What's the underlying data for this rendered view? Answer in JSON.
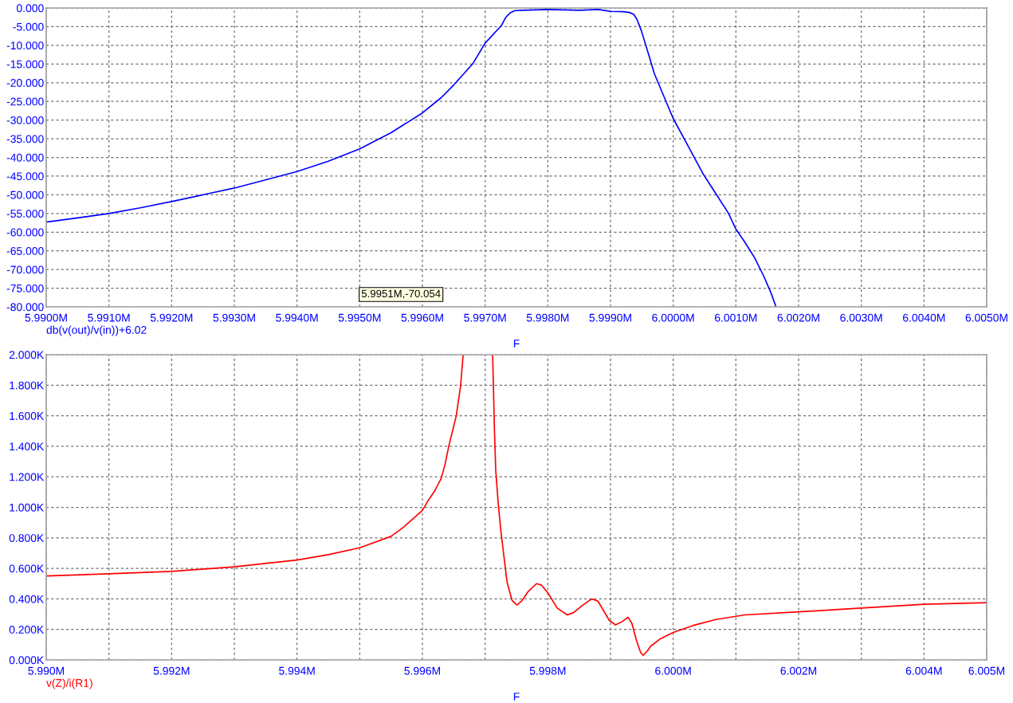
{
  "chart_data": [
    {
      "type": "line",
      "xlabel": "F",
      "x": [
        5.99,
        5.9905,
        5.991,
        5.9915,
        5.992,
        5.993,
        5.994,
        5.9945,
        5.995,
        5.9955,
        5.996,
        5.9963,
        5.9965,
        5.9968,
        5.997,
        5.99726,
        5.99733,
        5.9974,
        5.99748,
        5.9976,
        5.998,
        5.9985,
        5.9988,
        5.999,
        5.9992,
        5.9993,
        5.99937,
        5.99942,
        5.99949,
        5.9996,
        5.9997,
        5.99986,
        6.0,
        6.00022,
        6.00047,
        6.00068,
        6.00088,
        6.001,
        6.00114,
        6.0013,
        6.00145,
        6.00156,
        6.00164
      ],
      "series": [
        {
          "name": "db(v(out)/v(in))+6.02",
          "color": "#0000ff",
          "values": [
            -57.3,
            -56.2,
            -55.0,
            -53.5,
            -51.8,
            -48.2,
            -43.8,
            -41.0,
            -37.7,
            -33.4,
            -28.1,
            -24.0,
            -20.6,
            -15.0,
            -9.4,
            -4.7,
            -2.5,
            -1.3,
            -0.7,
            -0.6,
            -0.4,
            -0.6,
            -0.4,
            -0.9,
            -1.0,
            -1.2,
            -1.7,
            -3.0,
            -6.0,
            -12.0,
            -17.6,
            -24.0,
            -29.6,
            -36.4,
            -44.2,
            -49.7,
            -54.9,
            -59.2,
            -62.6,
            -66.9,
            -72.0,
            -76.3,
            -80.0
          ]
        }
      ],
      "xlim": [
        5.99,
        6.005
      ],
      "ylim": [
        -80,
        0
      ],
      "xticks": [
        {
          "value": 5.99,
          "label": "5.9900M"
        },
        {
          "value": 5.991,
          "label": "5.9910M"
        },
        {
          "value": 5.992,
          "label": "5.9920M"
        },
        {
          "value": 5.993,
          "label": "5.9930M"
        },
        {
          "value": 5.994,
          "label": "5.9940M"
        },
        {
          "value": 5.995,
          "label": "5.9950M"
        },
        {
          "value": 5.996,
          "label": "5.9960M"
        },
        {
          "value": 5.997,
          "label": "5.9970M"
        },
        {
          "value": 5.998,
          "label": "5.9980M"
        },
        {
          "value": 5.999,
          "label": "5.9990M"
        },
        {
          "value": 6.0,
          "label": "6.0000M"
        },
        {
          "value": 6.001,
          "label": "6.0010M"
        },
        {
          "value": 6.002,
          "label": "6.0020M"
        },
        {
          "value": 6.003,
          "label": "6.0030M"
        },
        {
          "value": 6.004,
          "label": "6.0040M"
        },
        {
          "value": 6.005,
          "label": "6.0050M"
        }
      ],
      "yticks": [
        {
          "value": 0,
          "label": "0.000"
        },
        {
          "value": -5,
          "label": "-5.000"
        },
        {
          "value": -10,
          "label": "-10.000"
        },
        {
          "value": -15,
          "label": "-15.000"
        },
        {
          "value": -20,
          "label": "-20.000"
        },
        {
          "value": -25,
          "label": "-25.000"
        },
        {
          "value": -30,
          "label": "-30.000"
        },
        {
          "value": -35,
          "label": "-35.000"
        },
        {
          "value": -40,
          "label": "-40.000"
        },
        {
          "value": -45,
          "label": "-45.000"
        },
        {
          "value": -50,
          "label": "-50.000"
        },
        {
          "value": -55,
          "label": "-55.000"
        },
        {
          "value": -60,
          "label": "-60.000"
        },
        {
          "value": -65,
          "label": "-65.000"
        },
        {
          "value": -70,
          "label": "-70.000"
        },
        {
          "value": -75,
          "label": "-75.000"
        },
        {
          "value": -80,
          "label": "-80.000"
        }
      ],
      "grid": true,
      "line_style": "solid",
      "annotations": [
        "5.9951M,-70.054"
      ]
    },
    {
      "type": "line",
      "xlabel": "F",
      "x": [
        5.99,
        5.991,
        5.992,
        5.993,
        5.994,
        5.9945,
        5.995,
        5.9955,
        5.9957,
        5.996,
        5.9961,
        5.9962,
        5.9963,
        5.99636,
        5.99642,
        5.99648,
        5.99654,
        5.99661,
        5.99665,
        5.9969,
        5.99712,
        5.99715,
        5.99717,
        5.99721,
        5.99725,
        5.9973,
        5.99735,
        5.99743,
        5.99751,
        5.99759,
        5.99769,
        5.99782,
        5.9979,
        5.998,
        5.99815,
        5.99831,
        5.99841,
        5.99856,
        5.9987,
        5.9988,
        5.99898,
        5.99908,
        5.99918,
        5.99928,
        5.99934,
        5.99942,
        5.99948,
        5.99952,
        5.99959,
        5.99964,
        5.9998,
        6.0,
        6.00031,
        6.00068,
        6.00114,
        6.002,
        6.003,
        6.004,
        6.005
      ],
      "series": [
        {
          "name": "v(Z)/i(R1)",
          "color": "#ff0000",
          "values": [
            0.55,
            0.565,
            0.58,
            0.61,
            0.655,
            0.69,
            0.735,
            0.81,
            0.87,
            0.98,
            1.05,
            1.11,
            1.19,
            1.28,
            1.4,
            1.5,
            1.6,
            1.8,
            2.0,
            null,
            2.0,
            1.49,
            1.24,
            1.02,
            0.85,
            0.68,
            0.51,
            0.39,
            0.36,
            0.39,
            0.45,
            0.5,
            0.49,
            0.44,
            0.34,
            0.295,
            0.31,
            0.36,
            0.4,
            0.385,
            0.26,
            0.23,
            0.25,
            0.28,
            0.24,
            0.12,
            0.05,
            0.03,
            0.06,
            0.09,
            0.14,
            0.18,
            0.225,
            0.265,
            0.295,
            0.315,
            0.34,
            0.365,
            0.375
          ]
        }
      ],
      "xlim": [
        5.99,
        6.005
      ],
      "ylim": [
        0,
        2
      ],
      "xticks": [
        {
          "value": 5.99,
          "label": "5.990M"
        },
        {
          "value": 5.991,
          "label": null
        },
        {
          "value": 5.992,
          "label": "5.992M"
        },
        {
          "value": 5.993,
          "label": null
        },
        {
          "value": 5.994,
          "label": "5.994M"
        },
        {
          "value": 5.995,
          "label": null
        },
        {
          "value": 5.996,
          "label": "5.996M"
        },
        {
          "value": 5.997,
          "label": null
        },
        {
          "value": 5.998,
          "label": "5.998M"
        },
        {
          "value": 5.999,
          "label": null
        },
        {
          "value": 6.0,
          "label": "6.000M"
        },
        {
          "value": 6.001,
          "label": null
        },
        {
          "value": 6.002,
          "label": "6.002M"
        },
        {
          "value": 6.003,
          "label": null
        },
        {
          "value": 6.004,
          "label": "6.004M"
        },
        {
          "value": 6.005,
          "label": "6.005M"
        }
      ],
      "yticks": [
        {
          "value": 0,
          "label": "0.000K"
        },
        {
          "value": 0.2,
          "label": "0.200K"
        },
        {
          "value": 0.4,
          "label": "0.400K"
        },
        {
          "value": 0.6,
          "label": "0.600K"
        },
        {
          "value": 0.8,
          "label": "0.800K"
        },
        {
          "value": 1.0,
          "label": "1.000K"
        },
        {
          "value": 1.2,
          "label": "1.200K"
        },
        {
          "value": 1.4,
          "label": "1.400K"
        },
        {
          "value": 1.6,
          "label": "1.600K"
        },
        {
          "value": 1.8,
          "label": "1.800K"
        },
        {
          "value": 2.0,
          "label": "2.000K"
        }
      ],
      "grid": true,
      "line_style": "solid"
    }
  ]
}
